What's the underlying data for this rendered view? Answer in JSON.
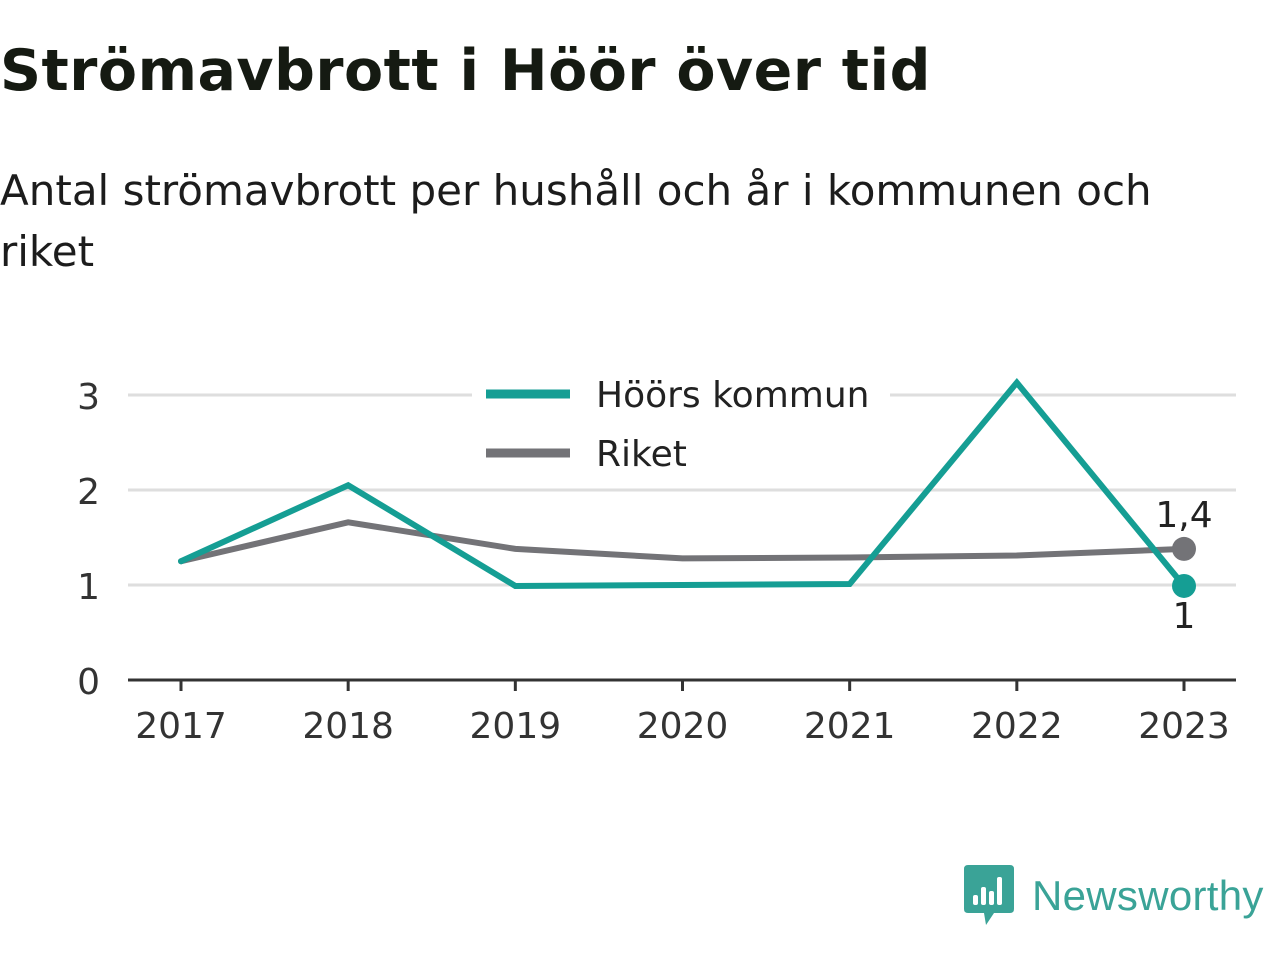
{
  "header": {
    "title": "Strömavbrott i Höör över tid",
    "subtitle": "Antal strömavbrott per hushåll och år i kommunen och riket"
  },
  "brand": {
    "name": "Newsworthy",
    "icon": "newsworthy-bar-chart-icon",
    "color": "#3aa397"
  },
  "chart_data": {
    "type": "line",
    "x": [
      "2017",
      "2018",
      "2019",
      "2020",
      "2021",
      "2022",
      "2023"
    ],
    "y_ticks": [
      "0",
      "1",
      "2",
      "3"
    ],
    "ylim": [
      0,
      3.2
    ],
    "grid": true,
    "legend_position": "top-center",
    "series": [
      {
        "name": "Höörs kommun",
        "color": "#159e94",
        "values": [
          1.25,
          2.05,
          0.99,
          1.0,
          1.01,
          3.13,
          0.99
        ],
        "end_label": "1"
      },
      {
        "name": "Riket",
        "color": "#737377",
        "values": [
          1.25,
          1.66,
          1.38,
          1.28,
          1.29,
          1.31,
          1.38
        ],
        "end_label": "1,4"
      }
    ]
  }
}
